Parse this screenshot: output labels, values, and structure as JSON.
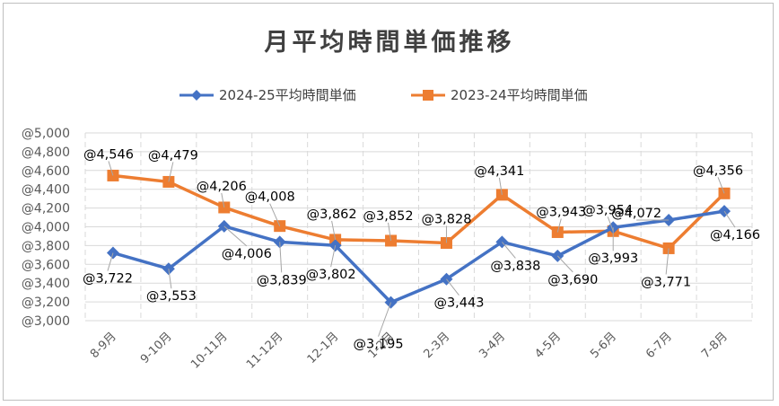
{
  "chart_data": {
    "type": "line",
    "title": "月平均時間単価推移",
    "categories": [
      "8-9月",
      "9-10月",
      "10-11月",
      "11-12月",
      "12-1月",
      "1-2月",
      "2-3月",
      "3-4月",
      "4-5月",
      "5-6月",
      "6-7月",
      "7-8月"
    ],
    "ylim": [
      3000,
      5000
    ],
    "ytick_step": 200,
    "ytick_labels": [
      "@3,000",
      "@3,200",
      "@3,400",
      "@3,600",
      "@3,800",
      "@4,000",
      "@4,200",
      "@4,400",
      "@4,600",
      "@4,800",
      "@5,000"
    ],
    "grid": true,
    "legend_position": "top",
    "series": [
      {
        "name": "2024-25平均時間単価",
        "color": "#4472c4",
        "marker": "diamond",
        "values": [
          3722,
          3553,
          4006,
          3839,
          3802,
          3195,
          3443,
          3838,
          3690,
          3993,
          4072,
          4166
        ],
        "labels": [
          "@3,722",
          "@3,553",
          "@4,006",
          "@3,839",
          "@3,802",
          "@3,195",
          "@3,443",
          "@3,838",
          "@3,690",
          "@3,993",
          "@4,072",
          "@4,166"
        ]
      },
      {
        "name": "2023-24平均時間単価",
        "color": "#ed7d31",
        "marker": "square",
        "values": [
          4546,
          4479,
          4206,
          4008,
          3862,
          3852,
          3828,
          4341,
          3943,
          3954,
          3771,
          4356
        ],
        "labels": [
          "@4,546",
          "@4,479",
          "@4,206",
          "@4,008",
          "@3,862",
          "@3,852",
          "@3,828",
          "@4,341",
          "@3,943",
          "@3,954",
          "@3,771",
          "@4,356"
        ]
      }
    ]
  }
}
